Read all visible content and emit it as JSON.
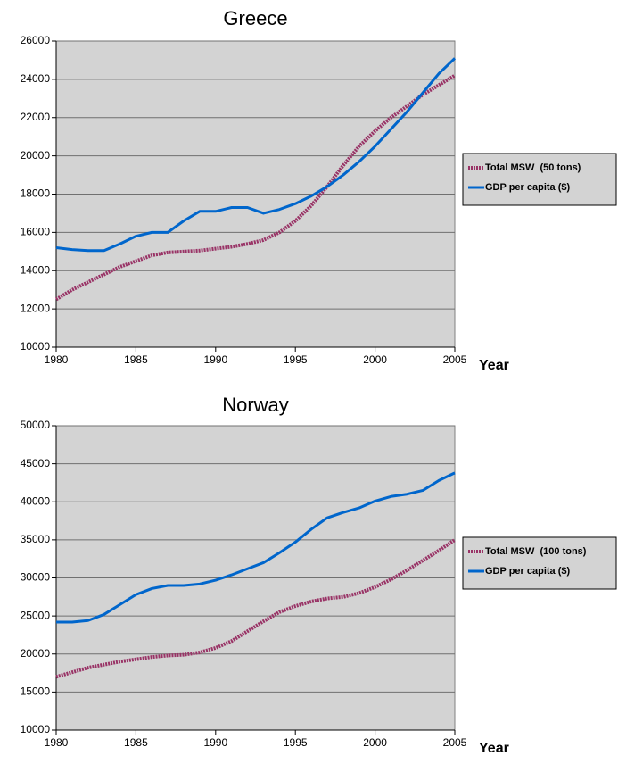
{
  "chart_data": [
    {
      "type": "line",
      "title": "Greece",
      "x_label": "Year",
      "x": [
        1980,
        1981,
        1982,
        1983,
        1984,
        1985,
        1986,
        1987,
        1988,
        1989,
        1990,
        1991,
        1992,
        1993,
        1994,
        1995,
        1996,
        1997,
        1998,
        1999,
        2000,
        2001,
        2002,
        2003,
        2004,
        2005
      ],
      "series": [
        {
          "name": "Total MSW  (50 tons)",
          "color": "#993366",
          "dashed": true,
          "values": [
            12500,
            13000,
            13400,
            13800,
            14200,
            14500,
            14800,
            14950,
            15000,
            15050,
            15150,
            15250,
            15400,
            15600,
            16000,
            16600,
            17400,
            18400,
            19500,
            20500,
            21300,
            22000,
            22600,
            23200,
            23700,
            24200
          ]
        },
        {
          "name": "GDP per capita ($)",
          "color": "#0066cc",
          "dashed": false,
          "values": [
            15200,
            15100,
            15050,
            15050,
            15400,
            15800,
            16000,
            16000,
            16600,
            17100,
            17100,
            17300,
            17300,
            17000,
            17200,
            17500,
            17900,
            18400,
            19000,
            19700,
            20500,
            21400,
            22300,
            23300,
            24300,
            25100
          ]
        }
      ],
      "xlim": [
        1980,
        2005
      ],
      "xticks": [
        1980,
        1985,
        1990,
        1995,
        2000,
        2005
      ],
      "ylim": [
        10000,
        26000
      ],
      "yticks": [
        10000,
        12000,
        14000,
        16000,
        18000,
        20000,
        22000,
        24000,
        26000
      ],
      "grid": true,
      "legend": "right"
    },
    {
      "type": "line",
      "title": "Norway",
      "x_label": "Year",
      "x": [
        1980,
        1981,
        1982,
        1983,
        1984,
        1985,
        1986,
        1987,
        1988,
        1989,
        1990,
        1991,
        1992,
        1993,
        1994,
        1995,
        1996,
        1997,
        1998,
        1999,
        2000,
        2001,
        2002,
        2003,
        2004,
        2005
      ],
      "series": [
        {
          "name": "Total MSW  (100 tons)",
          "color": "#993366",
          "dashed": true,
          "values": [
            17000,
            17600,
            18200,
            18600,
            19000,
            19300,
            19600,
            19800,
            19900,
            20200,
            20800,
            21700,
            23000,
            24300,
            25500,
            26300,
            26900,
            27300,
            27500,
            28000,
            28800,
            29800,
            31000,
            32300,
            33600,
            35000
          ]
        },
        {
          "name": "GDP per capita ($)",
          "color": "#0066cc",
          "dashed": false,
          "values": [
            24200,
            24200,
            24400,
            25200,
            26500,
            27800,
            28600,
            29000,
            29000,
            29200,
            29700,
            30400,
            31200,
            32000,
            33300,
            34700,
            36400,
            37900,
            38600,
            39200,
            40100,
            40700,
            41000,
            41500,
            42800,
            43800
          ]
        }
      ],
      "xlim": [
        1980,
        2005
      ],
      "xticks": [
        1980,
        1985,
        1990,
        1995,
        2000,
        2005
      ],
      "ylim": [
        10000,
        50000
      ],
      "yticks": [
        10000,
        15000,
        20000,
        25000,
        30000,
        35000,
        40000,
        45000,
        50000
      ],
      "grid": true,
      "legend": "right"
    }
  ]
}
